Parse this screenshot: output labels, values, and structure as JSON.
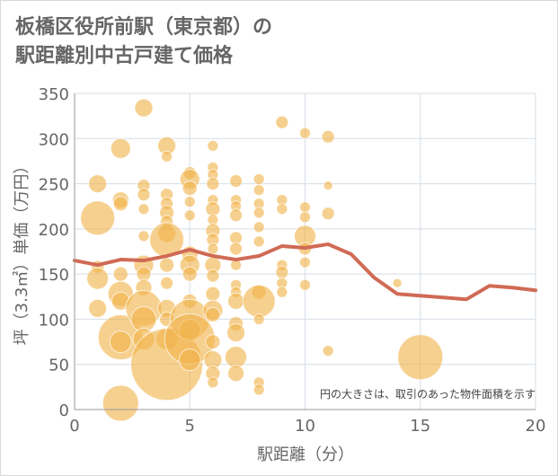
{
  "chart_data": {
    "type": "scatter",
    "title_line1": "板橋区役所前駅（東京都）の",
    "title_line2": "駅距離別中古戸建て価格",
    "xlabel": "駅距離（分）",
    "ylabel": "坪（3.3㎡）単価（万円）",
    "note": "円の大きさは、取引のあった物件面積を示す",
    "xlim": [
      0,
      20
    ],
    "ylim": [
      0,
      350
    ],
    "x_ticks": [
      "0",
      "5",
      "10",
      "15",
      "20"
    ],
    "y_ticks": [
      "0",
      "50",
      "100",
      "150",
      "200",
      "250",
      "300",
      "350"
    ],
    "colors": {
      "bubble": "#f0b34a",
      "line": "#d06a55",
      "grid": "#d5dde6"
    },
    "bubbles": [
      {
        "x": 1,
        "y": 250,
        "s": 10
      },
      {
        "x": 1,
        "y": 212,
        "s": 19
      },
      {
        "x": 1,
        "y": 158,
        "s": 7
      },
      {
        "x": 1,
        "y": 145,
        "s": 12
      },
      {
        "x": 1,
        "y": 112,
        "s": 10
      },
      {
        "x": 2,
        "y": 289,
        "s": 11
      },
      {
        "x": 2,
        "y": 232,
        "s": 9
      },
      {
        "x": 2,
        "y": 228,
        "s": 8
      },
      {
        "x": 2,
        "y": 150,
        "s": 8
      },
      {
        "x": 2,
        "y": 128,
        "s": 14
      },
      {
        "x": 2,
        "y": 120,
        "s": 10
      },
      {
        "x": 2,
        "y": 80,
        "s": 25
      },
      {
        "x": 2,
        "y": 75,
        "s": 12
      },
      {
        "x": 2,
        "y": 7,
        "s": 20
      },
      {
        "x": 3,
        "y": 334,
        "s": 10
      },
      {
        "x": 3,
        "y": 248,
        "s": 7
      },
      {
        "x": 3,
        "y": 238,
        "s": 7
      },
      {
        "x": 3,
        "y": 222,
        "s": 6
      },
      {
        "x": 3,
        "y": 192,
        "s": 6
      },
      {
        "x": 3,
        "y": 160,
        "s": 11
      },
      {
        "x": 3,
        "y": 150,
        "s": 8
      },
      {
        "x": 3,
        "y": 135,
        "s": 9
      },
      {
        "x": 3,
        "y": 112,
        "s": 20
      },
      {
        "x": 3,
        "y": 100,
        "s": 14
      },
      {
        "x": 3,
        "y": 78,
        "s": 12
      },
      {
        "x": 4,
        "y": 292,
        "s": 10
      },
      {
        "x": 4,
        "y": 280,
        "s": 6
      },
      {
        "x": 4,
        "y": 238,
        "s": 7
      },
      {
        "x": 4,
        "y": 228,
        "s": 7
      },
      {
        "x": 4,
        "y": 218,
        "s": 8
      },
      {
        "x": 4,
        "y": 208,
        "s": 7
      },
      {
        "x": 4,
        "y": 195,
        "s": 10
      },
      {
        "x": 4,
        "y": 188,
        "s": 19
      },
      {
        "x": 4,
        "y": 160,
        "s": 8
      },
      {
        "x": 4,
        "y": 140,
        "s": 7
      },
      {
        "x": 4,
        "y": 112,
        "s": 10
      },
      {
        "x": 4,
        "y": 100,
        "s": 8
      },
      {
        "x": 4,
        "y": 78,
        "s": 12
      },
      {
        "x": 4,
        "y": 50,
        "s": 40
      },
      {
        "x": 5,
        "y": 262,
        "s": 7
      },
      {
        "x": 5,
        "y": 255,
        "s": 11
      },
      {
        "x": 5,
        "y": 245,
        "s": 8
      },
      {
        "x": 5,
        "y": 230,
        "s": 6
      },
      {
        "x": 5,
        "y": 215,
        "s": 6
      },
      {
        "x": 5,
        "y": 172,
        "s": 9
      },
      {
        "x": 5,
        "y": 160,
        "s": 11
      },
      {
        "x": 5,
        "y": 150,
        "s": 8
      },
      {
        "x": 5,
        "y": 120,
        "s": 8
      },
      {
        "x": 5,
        "y": 100,
        "s": 22
      },
      {
        "x": 5,
        "y": 88,
        "s": 12
      },
      {
        "x": 5,
        "y": 78,
        "s": 28
      },
      {
        "x": 5,
        "y": 55,
        "s": 12
      },
      {
        "x": 6,
        "y": 292,
        "s": 6
      },
      {
        "x": 6,
        "y": 268,
        "s": 6
      },
      {
        "x": 6,
        "y": 260,
        "s": 6
      },
      {
        "x": 6,
        "y": 250,
        "s": 7
      },
      {
        "x": 6,
        "y": 232,
        "s": 6
      },
      {
        "x": 6,
        "y": 222,
        "s": 8
      },
      {
        "x": 6,
        "y": 210,
        "s": 6
      },
      {
        "x": 6,
        "y": 198,
        "s": 8
      },
      {
        "x": 6,
        "y": 188,
        "s": 7
      },
      {
        "x": 6,
        "y": 178,
        "s": 6
      },
      {
        "x": 6,
        "y": 160,
        "s": 9
      },
      {
        "x": 6,
        "y": 148,
        "s": 7
      },
      {
        "x": 6,
        "y": 128,
        "s": 8
      },
      {
        "x": 6,
        "y": 110,
        "s": 11
      },
      {
        "x": 6,
        "y": 105,
        "s": 8
      },
      {
        "x": 6,
        "y": 75,
        "s": 8
      },
      {
        "x": 6,
        "y": 55,
        "s": 10
      },
      {
        "x": 6,
        "y": 40,
        "s": 8
      },
      {
        "x": 6,
        "y": 30,
        "s": 6
      },
      {
        "x": 7,
        "y": 253,
        "s": 7
      },
      {
        "x": 7,
        "y": 232,
        "s": 6
      },
      {
        "x": 7,
        "y": 225,
        "s": 6
      },
      {
        "x": 7,
        "y": 215,
        "s": 7
      },
      {
        "x": 7,
        "y": 190,
        "s": 7
      },
      {
        "x": 7,
        "y": 178,
        "s": 7
      },
      {
        "x": 7,
        "y": 160,
        "s": 6
      },
      {
        "x": 7,
        "y": 138,
        "s": 6
      },
      {
        "x": 7,
        "y": 130,
        "s": 6
      },
      {
        "x": 7,
        "y": 120,
        "s": 9
      },
      {
        "x": 7,
        "y": 95,
        "s": 8
      },
      {
        "x": 7,
        "y": 85,
        "s": 10
      },
      {
        "x": 7,
        "y": 58,
        "s": 12
      },
      {
        "x": 7,
        "y": 40,
        "s": 9
      },
      {
        "x": 8,
        "y": 255,
        "s": 6
      },
      {
        "x": 8,
        "y": 243,
        "s": 6
      },
      {
        "x": 8,
        "y": 228,
        "s": 6
      },
      {
        "x": 8,
        "y": 218,
        "s": 6
      },
      {
        "x": 8,
        "y": 202,
        "s": 6
      },
      {
        "x": 8,
        "y": 186,
        "s": 6
      },
      {
        "x": 8,
        "y": 130,
        "s": 8
      },
      {
        "x": 8,
        "y": 120,
        "s": 18
      },
      {
        "x": 8,
        "y": 100,
        "s": 6
      },
      {
        "x": 8,
        "y": 30,
        "s": 6
      },
      {
        "x": 8,
        "y": 22,
        "s": 6
      },
      {
        "x": 9,
        "y": 318,
        "s": 7
      },
      {
        "x": 9,
        "y": 232,
        "s": 6
      },
      {
        "x": 9,
        "y": 222,
        "s": 6
      },
      {
        "x": 9,
        "y": 160,
        "s": 6
      },
      {
        "x": 9,
        "y": 152,
        "s": 7
      },
      {
        "x": 9,
        "y": 140,
        "s": 6
      },
      {
        "x": 9,
        "y": 130,
        "s": 6
      },
      {
        "x": 10,
        "y": 306,
        "s": 6
      },
      {
        "x": 10,
        "y": 224,
        "s": 6
      },
      {
        "x": 10,
        "y": 213,
        "s": 6
      },
      {
        "x": 10,
        "y": 192,
        "s": 12
      },
      {
        "x": 10,
        "y": 178,
        "s": 7
      },
      {
        "x": 10,
        "y": 163,
        "s": 6
      },
      {
        "x": 10,
        "y": 138,
        "s": 6
      },
      {
        "x": 11,
        "y": 302,
        "s": 7
      },
      {
        "x": 11,
        "y": 248,
        "s": 5
      },
      {
        "x": 11,
        "y": 217,
        "s": 7
      },
      {
        "x": 11,
        "y": 65,
        "s": 6
      },
      {
        "x": 14,
        "y": 140,
        "s": 5
      },
      {
        "x": 15,
        "y": 58,
        "s": 25
      }
    ],
    "average_line": {
      "x": [
        0,
        1,
        2,
        3,
        4,
        5,
        6,
        7,
        8,
        9,
        10,
        11,
        12,
        13,
        14,
        15,
        16,
        17,
        18,
        19,
        20
      ],
      "y": [
        165,
        160,
        166,
        165,
        170,
        177,
        170,
        166,
        170,
        181,
        179,
        183,
        172,
        146,
        128,
        126,
        124,
        122,
        137,
        135,
        132
      ]
    }
  }
}
